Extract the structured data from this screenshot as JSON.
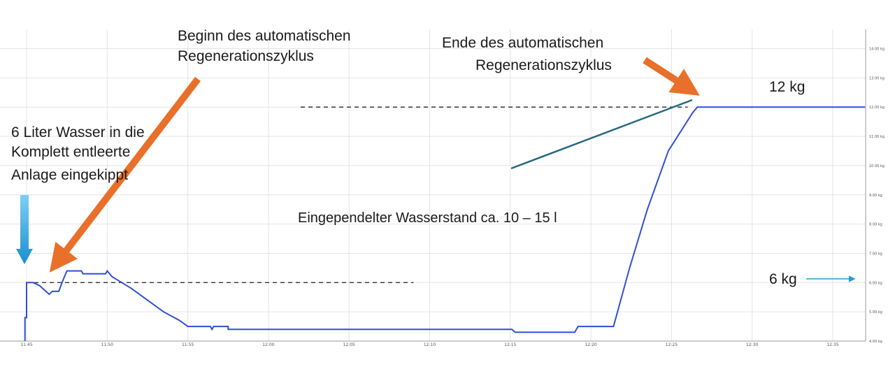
{
  "chart_data": {
    "type": "line",
    "x_ticks": [
      "11:45",
      "11:50",
      "11:55",
      "12:00",
      "12:05",
      "12:10",
      "12:15",
      "12:20",
      "12:25",
      "12:30",
      "12:35"
    ],
    "y_ticks": [
      "4.00 kg",
      "5.00 kg",
      "6.00 kg",
      "7.00 kg",
      "8.00 kg",
      "9.00 kg",
      "10.00 kg",
      "11.00 kg",
      "12.00 kg",
      "13.00 kg",
      "14.00 kg"
    ],
    "ylim": [
      4,
      14.3
    ],
    "xlim": [
      "11:41",
      "12:37"
    ],
    "grid": true,
    "y_axis_side": "right",
    "series": [
      {
        "color": "#2f4fd6",
        "points": [
          [
            "11:44.9",
            4.0
          ],
          [
            "11:44.9",
            4.8
          ],
          [
            "11:45.0",
            4.8
          ],
          [
            "11:45.0",
            6.0
          ],
          [
            "11:45.4",
            6.0
          ],
          [
            "11:45.8",
            5.9
          ],
          [
            "11:46.0",
            5.8
          ],
          [
            "11:46.2",
            5.7
          ],
          [
            "11:46.4",
            5.6
          ],
          [
            "11:46.6",
            5.7
          ],
          [
            "11:47.0",
            5.7
          ],
          [
            "11:47.2",
            6.0
          ],
          [
            "11:47.5",
            6.4
          ],
          [
            "11:48.4",
            6.4
          ],
          [
            "11:48.5",
            6.3
          ],
          [
            "11:49.9",
            6.3
          ],
          [
            "11:50.0",
            6.4
          ],
          [
            "11:50.3",
            6.2
          ],
          [
            "11:50.9",
            6.0
          ],
          [
            "11:51.5",
            5.8
          ],
          [
            "11:52.5",
            5.4
          ],
          [
            "11:53.5",
            5.0
          ],
          [
            "11:54.5",
            4.7
          ],
          [
            "11:55.0",
            4.5
          ],
          [
            "11:56.4",
            4.5
          ],
          [
            "11:56.5",
            4.4
          ],
          [
            "11:56.6",
            4.5
          ],
          [
            "11:57.5",
            4.5
          ],
          [
            "11:57.5",
            4.4
          ],
          [
            "12:15.1",
            4.4
          ],
          [
            "12:15.3",
            4.3
          ],
          [
            "12:19.0",
            4.3
          ],
          [
            "12:19.2",
            4.5
          ],
          [
            "12:21.4",
            4.5
          ],
          [
            "12:22.4",
            6.5
          ],
          [
            "12:23.5",
            8.5
          ],
          [
            "12:24.8",
            10.5
          ],
          [
            "12:26.3",
            11.8
          ],
          [
            "12:26.6",
            12.0
          ],
          [
            "12:37.0",
            12.0
          ]
        ]
      }
    ],
    "reference_lines": [
      {
        "value": 6.0,
        "from": "11:45",
        "to": "12:09"
      },
      {
        "value": 12.0,
        "from": "12:02",
        "to": "12:26"
      }
    ],
    "annotations": {
      "fill_label": [
        "6 Liter Wasser in die",
        "Komplett entleerte",
        "Anlage eingekippt"
      ],
      "start_label": [
        "Beginn des automatischen",
        "Regenerationszyklus"
      ],
      "end_label": [
        "Ende des automatischen",
        "Regenerationszyklus"
      ],
      "level_label": "Eingependelter Wasserstand ca. 10 – 15 l",
      "label_12kg": "12 kg",
      "label_6kg": "6 kg"
    },
    "colors": {
      "line": "#2f4fd6",
      "grid": "#e4e4e4",
      "arrow_orange": "#e8702a",
      "arrow_blue": "#1f9fd9",
      "arrow_teal": "#266a7a",
      "dashed": "#333333"
    }
  }
}
